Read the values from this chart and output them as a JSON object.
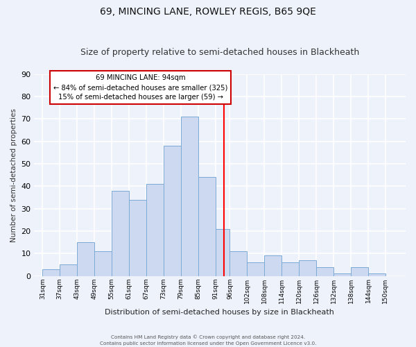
{
  "title": "69, MINCING LANE, ROWLEY REGIS, B65 9QE",
  "subtitle": "Size of property relative to semi-detached houses in Blackheath",
  "xlabel": "Distribution of semi-detached houses by size in Blackheath",
  "ylabel": "Number of semi-detached properties",
  "bar_labels": [
    "31sqm",
    "37sqm",
    "43sqm",
    "49sqm",
    "55sqm",
    "61sqm",
    "67sqm",
    "73sqm",
    "79sqm",
    "85sqm",
    "91sqm",
    "96sqm",
    "102sqm",
    "108sqm",
    "114sqm",
    "120sqm",
    "126sqm",
    "132sqm",
    "138sqm",
    "144sqm",
    "150sqm"
  ],
  "bar_values": [
    3,
    5,
    15,
    11,
    38,
    34,
    41,
    58,
    71,
    44,
    21,
    11,
    6,
    9,
    6,
    7,
    4,
    1,
    4,
    1,
    0
  ],
  "bar_color": "#ccd9f0",
  "bar_edge_color": "#7aaad4",
  "background_color": "#eef2fb",
  "grid_color": "#ffffff",
  "ylim": [
    0,
    90
  ],
  "yticks": [
    0,
    10,
    20,
    30,
    40,
    50,
    60,
    70,
    80,
    90
  ],
  "annotation_title": "69 MINCING LANE: 94sqm",
  "annotation_line1": "← 84% of semi-detached houses are smaller (325)",
  "annotation_line2": "15% of semi-detached houses are larger (59) →",
  "footer_line1": "Contains HM Land Registry data © Crown copyright and database right 2024.",
  "footer_line2": "Contains public sector information licensed under the Open Government Licence v3.0.",
  "title_fontsize": 10,
  "subtitle_fontsize": 9
}
